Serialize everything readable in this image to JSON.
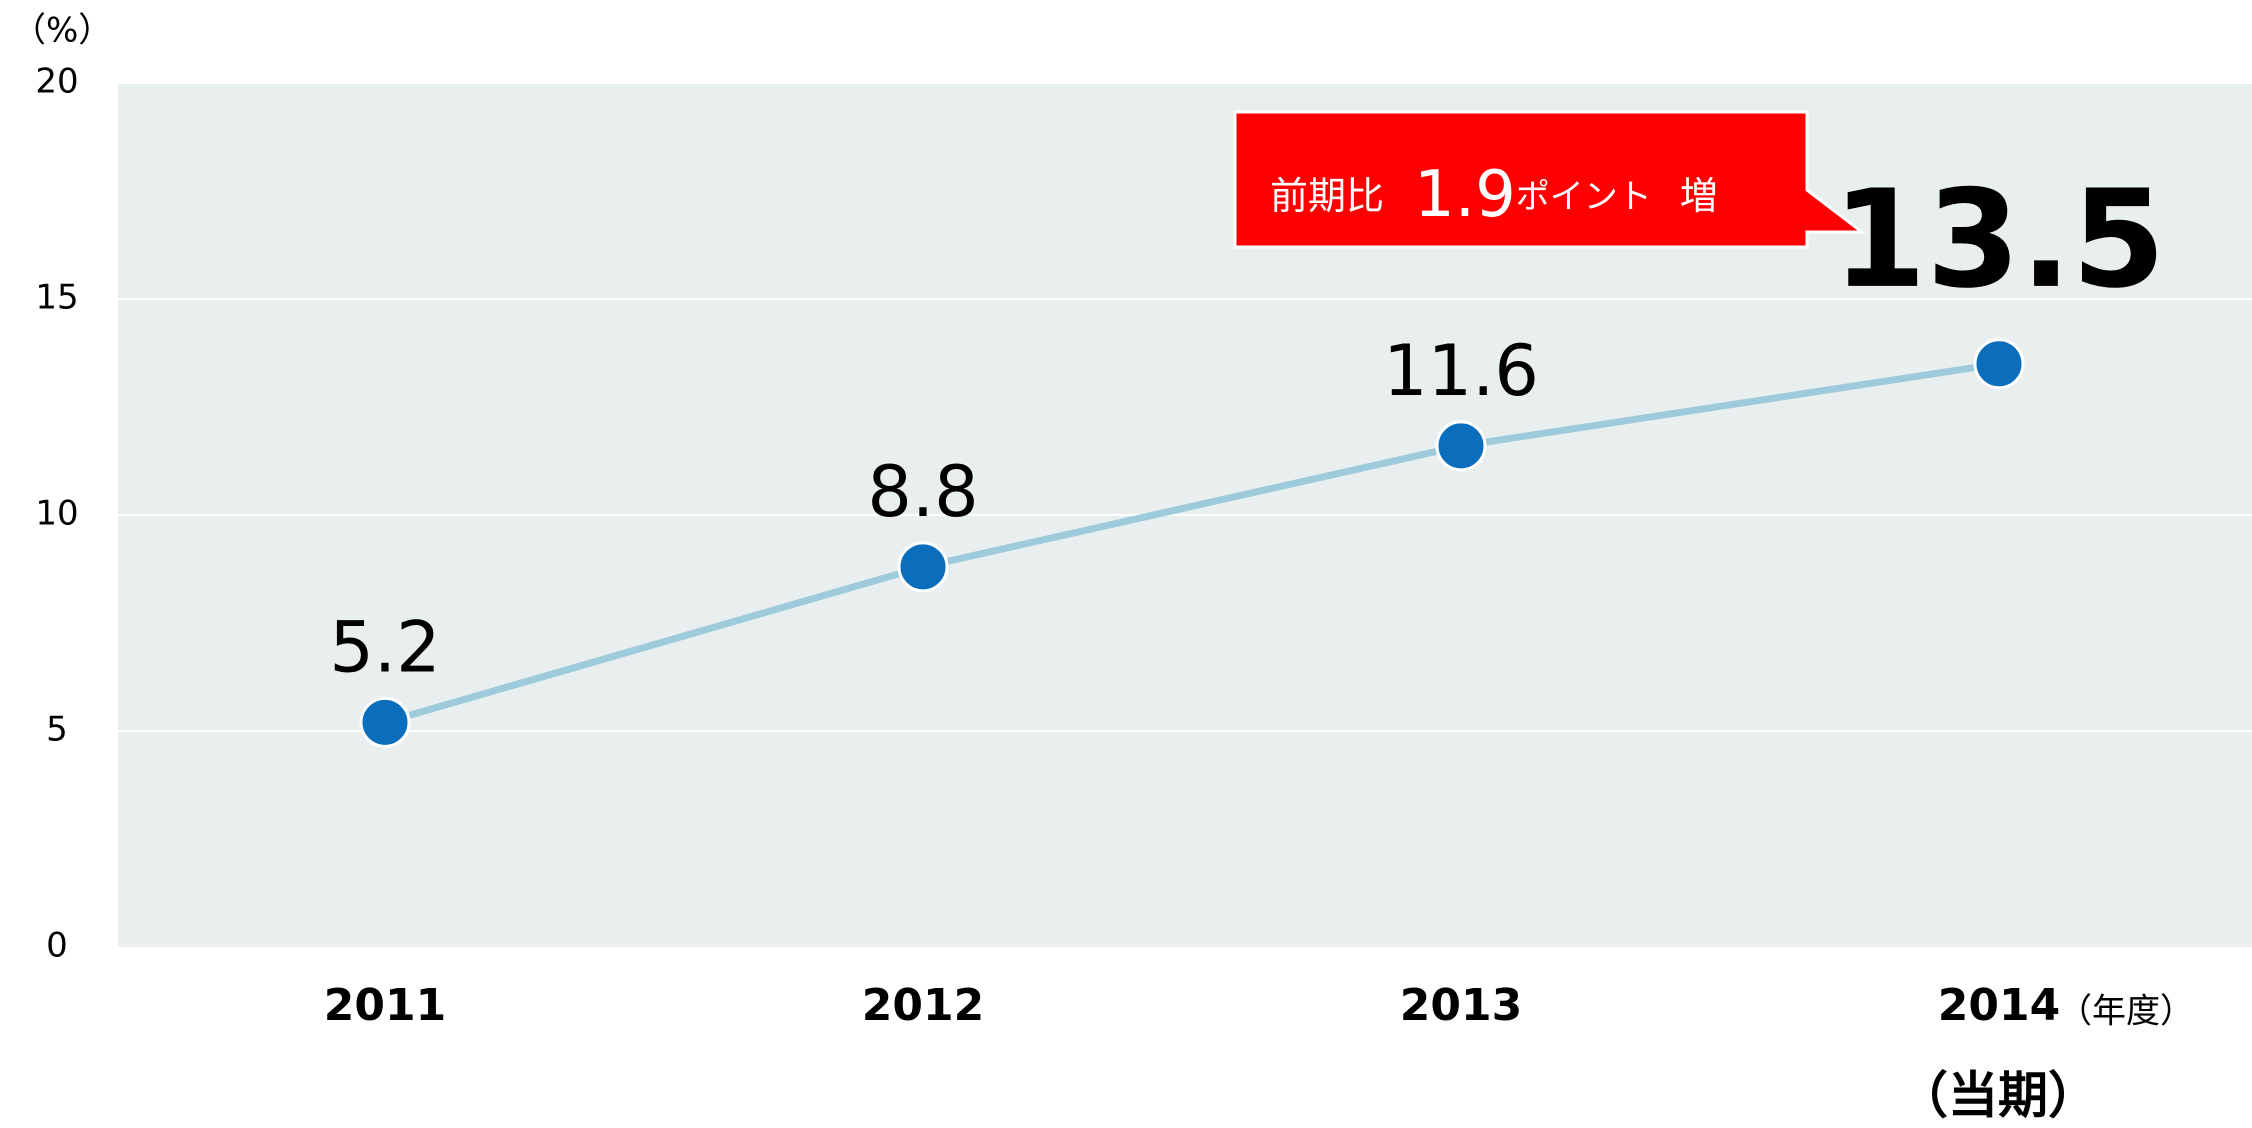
{
  "chart_data": {
    "type": "line",
    "y_label": "（%）",
    "x_label": "（年度）",
    "note": "（当期）",
    "annotation": {
      "prefix": "前期比",
      "value": "1.9",
      "unit": "ポイント",
      "suffix": "増"
    },
    "categories": [
      "2011",
      "2012",
      "2013",
      "2014"
    ],
    "values": [
      5.2,
      8.8,
      11.6,
      13.5
    ],
    "line_color": "#9dcbdc",
    "marker_color": "#0a6ebd",
    "background": "#e9efef",
    "ylim": [
      0,
      20
    ],
    "yticks": [
      0,
      5,
      10,
      15,
      20
    ],
    "grid": true
  }
}
